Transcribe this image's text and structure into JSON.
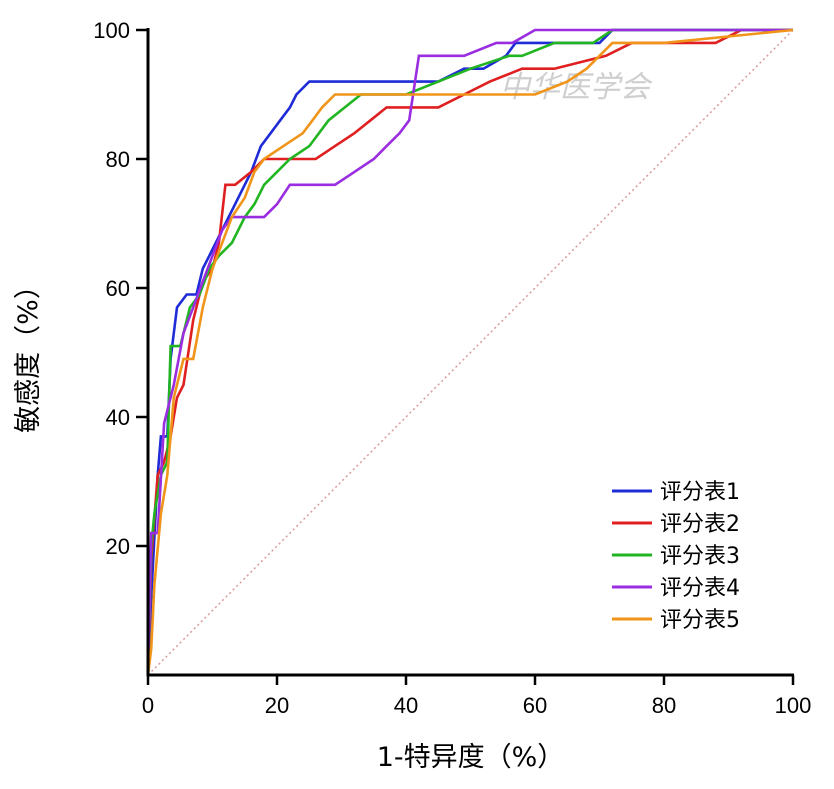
{
  "watermark": "中华医学会",
  "chart_data": {
    "type": "line",
    "title": "",
    "xlabel": "1-特异度（%）",
    "ylabel": "敏感度（%）",
    "xlim": [
      0,
      100
    ],
    "ylim": [
      0,
      100
    ],
    "x_ticks": [
      0,
      20,
      40,
      60,
      80,
      100
    ],
    "y_ticks": [
      20,
      40,
      60,
      80,
      100
    ],
    "grid": false,
    "legend_position": "bottom-right",
    "reference_line": {
      "x": [
        0,
        100
      ],
      "y": [
        0,
        100
      ],
      "style": "dotted",
      "color": "#d9a0a0"
    },
    "series": [
      {
        "name": "评分表1",
        "color": "#1f2bd6",
        "x": [
          0,
          0.5,
          1.5,
          2,
          3,
          3.5,
          4.5,
          6,
          7.5,
          8.5,
          9.5,
          11.5,
          13.5,
          14.5,
          16,
          17.5,
          19,
          20.5,
          22,
          23,
          25,
          26.5,
          28,
          33,
          37,
          41.5,
          45,
          49,
          52,
          55.5,
          57,
          65,
          70,
          72,
          100
        ],
        "y": [
          0,
          12,
          31,
          37,
          37,
          49,
          57,
          59,
          59,
          63,
          65,
          69,
          73,
          75,
          78,
          82,
          84,
          86,
          88,
          90,
          92,
          92,
          92,
          92,
          92,
          92,
          92,
          94,
          94,
          96,
          98,
          98,
          98,
          100,
          100
        ]
      },
      {
        "name": "评分表2",
        "color": "#e02020",
        "x": [
          0,
          0.5,
          1.5,
          2.5,
          3.5,
          4.5,
          5.5,
          7,
          8.5,
          10,
          11,
          12,
          13.5,
          16,
          18,
          22,
          26,
          29,
          32,
          34.5,
          37,
          40,
          45,
          49,
          53,
          58,
          63,
          71,
          75,
          80,
          88,
          92,
          100
        ],
        "y": [
          0,
          18,
          31,
          33,
          37,
          43,
          45,
          55,
          61,
          63,
          67,
          76,
          76,
          78,
          80,
          80,
          80,
          82,
          84,
          86,
          88,
          88,
          88,
          90,
          92,
          94,
          94,
          96,
          98,
          98,
          98,
          100,
          100
        ]
      },
      {
        "name": "评分表3",
        "color": "#22b522",
        "x": [
          0,
          0.5,
          1,
          2,
          3,
          3.5,
          5,
          6.5,
          8,
          9.5,
          11,
          13,
          15,
          16.5,
          18,
          20,
          22,
          25,
          28,
          33,
          40,
          45,
          50,
          56,
          58,
          63,
          69,
          72,
          80,
          100
        ],
        "y": [
          0,
          20,
          25,
          31,
          33,
          51,
          51,
          57,
          59,
          63,
          65,
          67,
          71,
          73,
          76,
          78,
          80,
          82,
          86,
          90,
          90,
          92,
          94,
          96,
          96,
          98,
          98,
          100,
          100,
          100
        ]
      },
      {
        "name": "评分表4",
        "color": "#9a2de0",
        "x": [
          0,
          0.5,
          1.5,
          2.5,
          4,
          5.5,
          7,
          8.5,
          10,
          11.5,
          13,
          15,
          18,
          20,
          22,
          25,
          29,
          32,
          35,
          37,
          39,
          40.5,
          42,
          49,
          54,
          56.5,
          60,
          70,
          100
        ],
        "y": [
          0,
          22,
          22,
          39,
          45,
          53,
          57,
          61,
          65,
          69,
          71,
          71,
          71,
          73,
          76,
          76,
          76,
          78,
          80,
          82,
          84,
          86,
          96,
          96,
          98,
          98,
          100,
          100,
          100
        ]
      },
      {
        "name": "评分表5",
        "color": "#f0951a",
        "x": [
          0,
          0.5,
          1,
          2,
          3,
          4,
          5.5,
          7,
          8.5,
          10,
          11.5,
          13,
          15,
          16.5,
          18,
          21,
          24,
          25.5,
          27,
          29,
          33,
          38,
          45,
          52,
          60,
          65,
          68,
          70,
          72,
          80,
          100
        ],
        "y": [
          0,
          4,
          14,
          25,
          31,
          43,
          49,
          49,
          57,
          63,
          67,
          71,
          74,
          78,
          80,
          82,
          84,
          86,
          88,
          90,
          90,
          90,
          90,
          90,
          90,
          92,
          94,
          96,
          98,
          98,
          100
        ]
      }
    ]
  }
}
